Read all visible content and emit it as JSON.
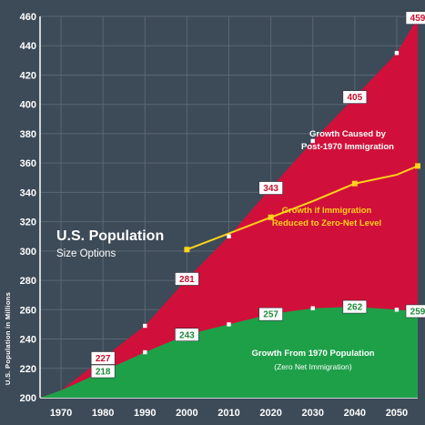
{
  "chart_data": {
    "type": "area",
    "title": "U.S. Population",
    "subtitle": "Size Options",
    "ylabel": "U.S. Population in Millions",
    "xlabel": "",
    "ylim": [
      200,
      460
    ],
    "xlim": [
      1965,
      2055
    ],
    "y_ticks": [
      "200",
      "220",
      "240",
      "260",
      "280",
      "300",
      "320",
      "340",
      "360",
      "380",
      "400",
      "420",
      "440",
      "460"
    ],
    "x_ticks": [
      "1970",
      "1980",
      "1990",
      "2000",
      "2010",
      "2020",
      "2030",
      "2040",
      "2050"
    ],
    "grid": true,
    "colors": {
      "background": "#3d4a57",
      "plot_background": "#3d4a57",
      "grid": "#5a6774",
      "immigration_growth": "#d0103a",
      "base_growth": "#1ea049",
      "zero_net_line": "#ffd21a",
      "marker": "#ffffff"
    },
    "series": [
      {
        "name": "Growth Caused by Post-1970 Immigration",
        "x": [
          1965,
          1970,
          1980,
          1990,
          2000,
          2010,
          2020,
          2030,
          2040,
          2050,
          2055
        ],
        "y": [
          200,
          205,
          227,
          249,
          281,
          310,
          343,
          375,
          405,
          435,
          459
        ],
        "labels": [
          null,
          null,
          "227",
          null,
          "281",
          null,
          "343",
          null,
          "405",
          null,
          "459"
        ],
        "markers": [
          false,
          false,
          true,
          true,
          true,
          true,
          true,
          true,
          true,
          true,
          true
        ]
      },
      {
        "name": "Growth if Immigration Reduced to Zero-Net Level",
        "x": [
          2000,
          2010,
          2020,
          2030,
          2040,
          2050,
          2055
        ],
        "y": [
          301,
          312,
          323,
          334,
          346,
          352,
          358
        ],
        "markers": [
          true,
          false,
          true,
          false,
          true,
          false,
          true
        ]
      },
      {
        "name": "Growth From 1970 Population",
        "x": [
          1965,
          1970,
          1980,
          1990,
          2000,
          2010,
          2020,
          2030,
          2040,
          2050,
          2055
        ],
        "y": [
          200,
          205,
          218,
          231,
          243,
          250,
          257,
          261,
          262,
          260,
          259
        ],
        "labels": [
          null,
          null,
          "218",
          null,
          "243",
          null,
          "257",
          null,
          "262",
          null,
          "259"
        ],
        "markers": [
          false,
          false,
          true,
          true,
          true,
          true,
          true,
          true,
          true,
          true,
          true
        ]
      }
    ],
    "annotations": {
      "immigration_growth": [
        "Growth Caused by",
        "Post-1970 Immigration"
      ],
      "zero_net": [
        "Growth if Immigration",
        "Reduced to Zero-Net Level"
      ],
      "base_growth": [
        "Growth From 1970 Population"
      ],
      "base_growth_note": "(Zero Net Immigration)"
    }
  }
}
